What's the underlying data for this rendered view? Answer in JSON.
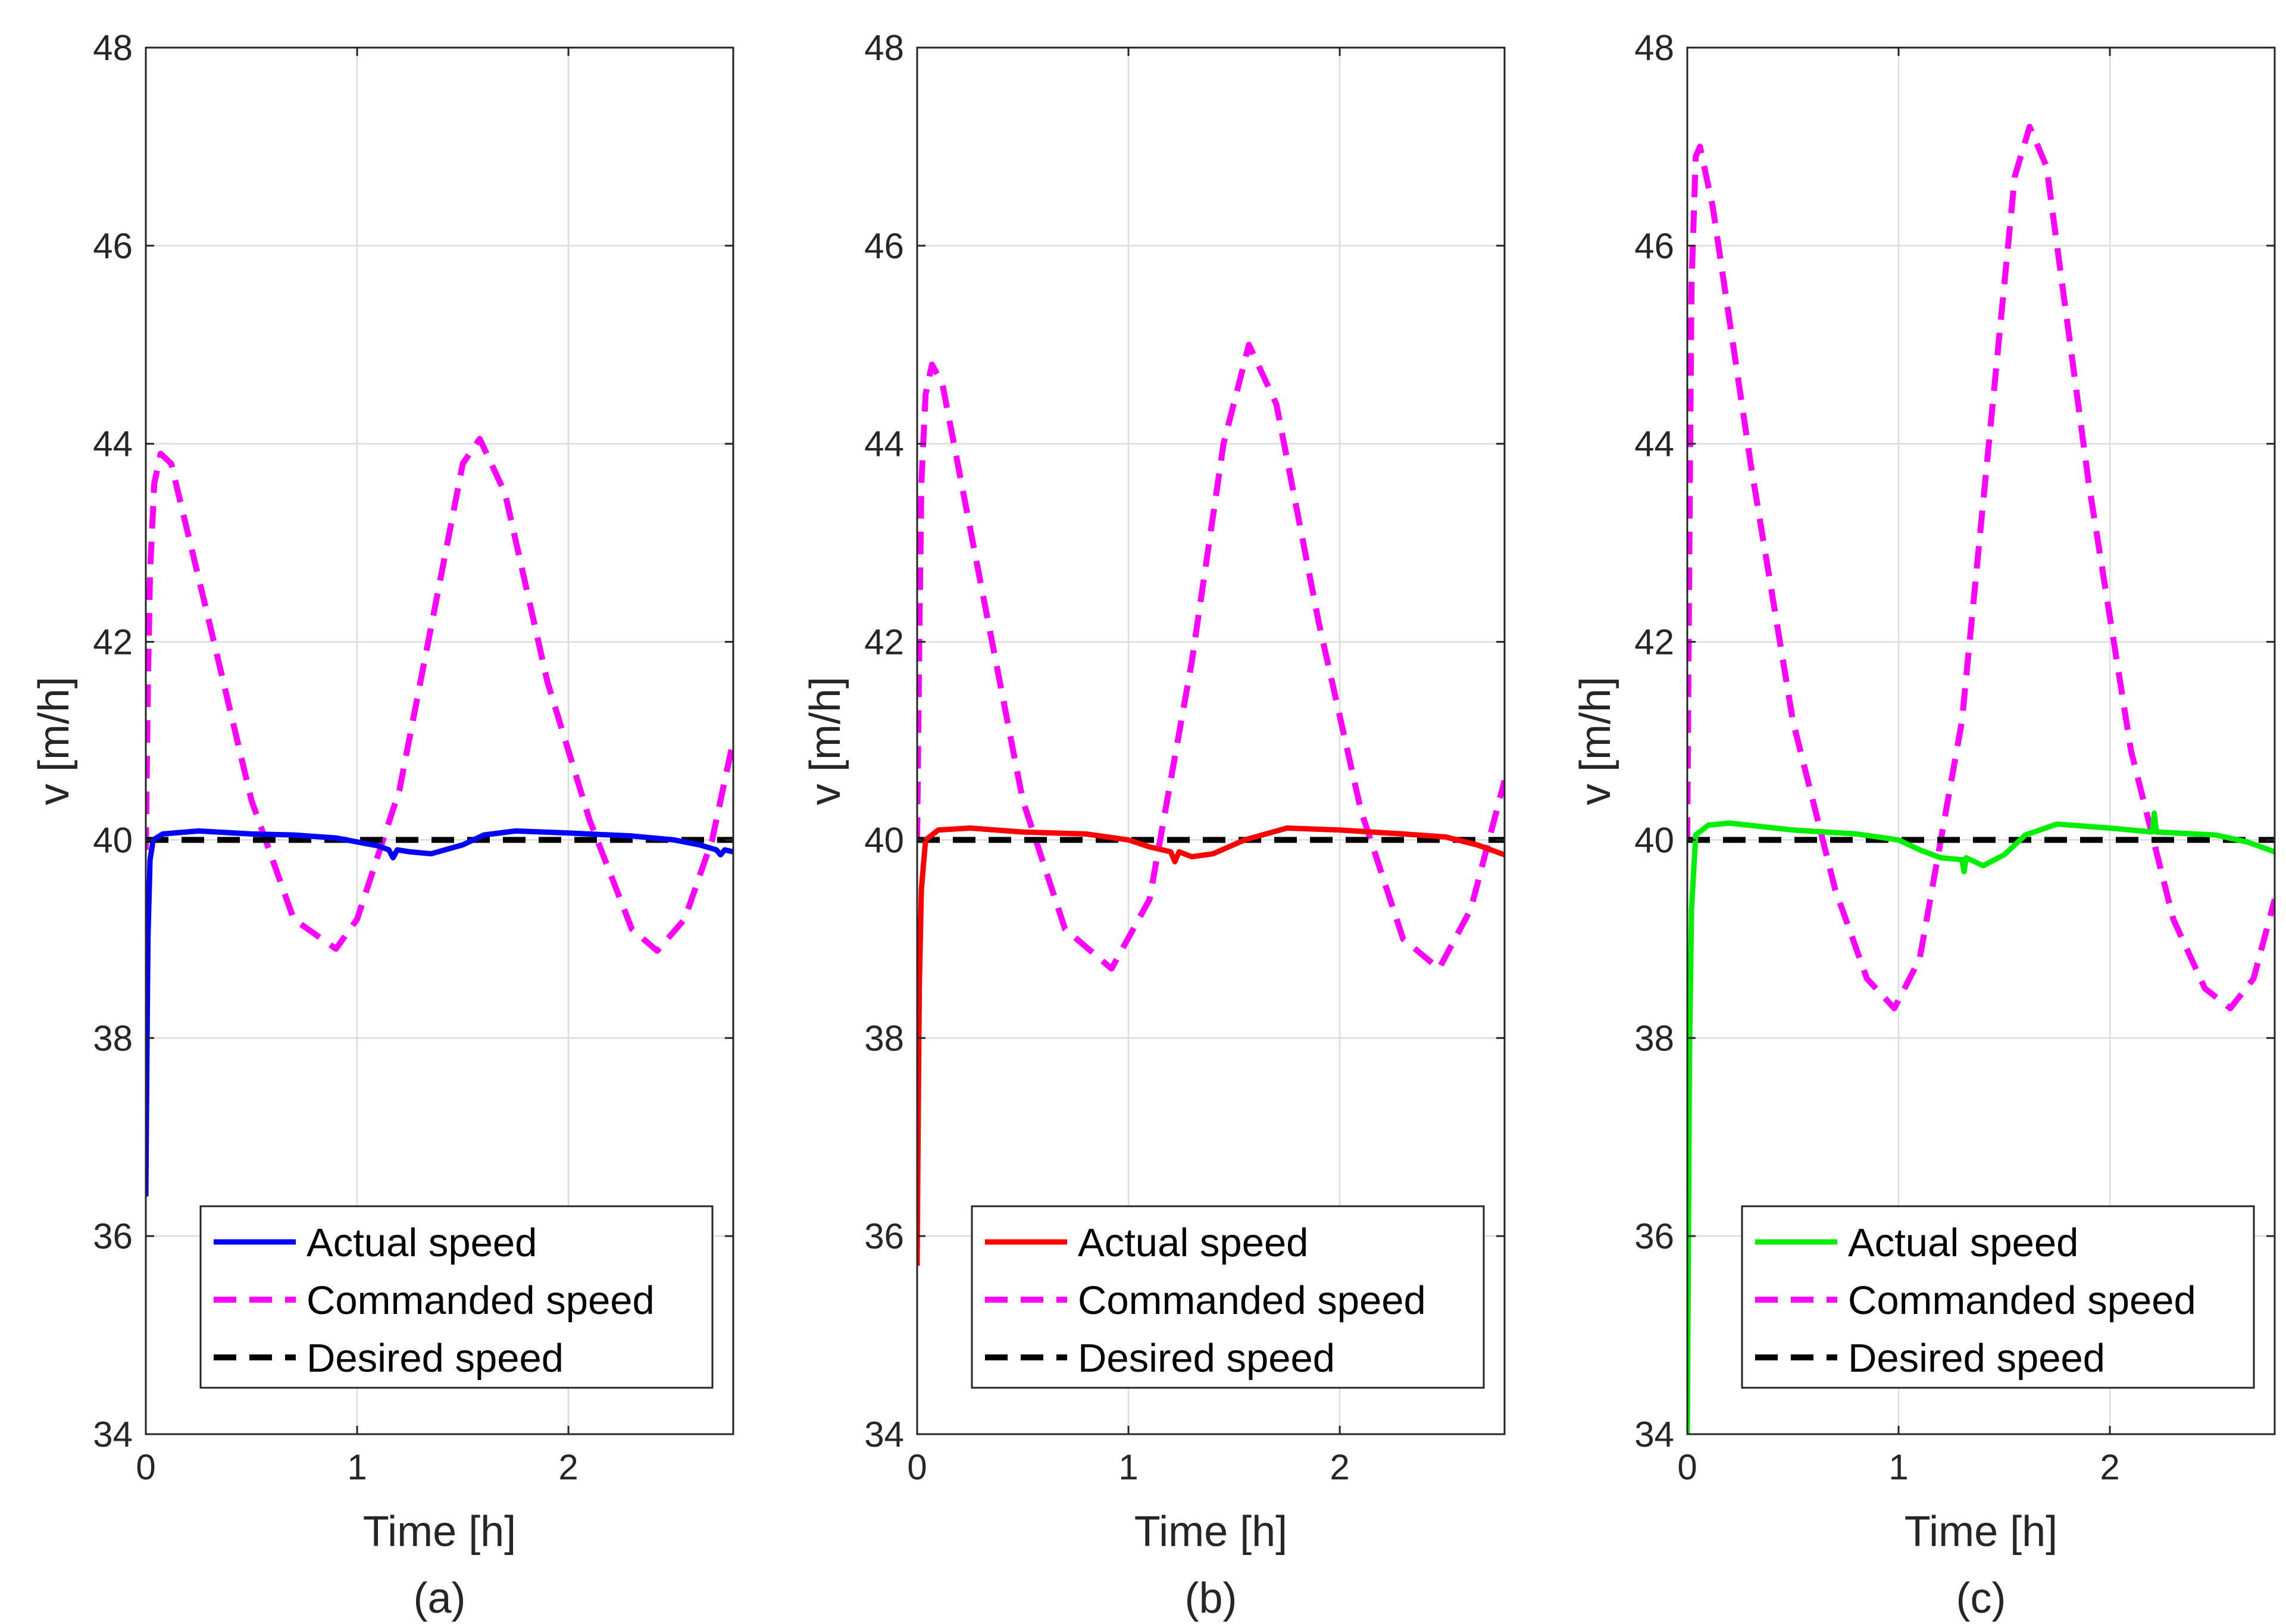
{
  "figure": {
    "colors": {
      "background": "#ffffff",
      "grid": "#dcdcdc",
      "axis": "#262626",
      "commanded": "#ff00ff",
      "desired": "#000000"
    }
  },
  "chart_data": [
    {
      "type": "line",
      "panel_label": "(a)",
      "xlabel": "Time [h]",
      "ylabel": "v [m/h]",
      "xlim": [
        0,
        2.78
      ],
      "ylim": [
        34,
        48
      ],
      "xticks": [
        "0",
        "1",
        "2"
      ],
      "yticks": [
        "34",
        "36",
        "38",
        "40",
        "42",
        "44",
        "46",
        "48"
      ],
      "grid": true,
      "legend_position": "bottom-right",
      "series": [
        {
          "name": "Actual speed",
          "color": "#0000ff",
          "style": "solid",
          "points": [
            [
              0,
              36.4
            ],
            [
              0.005,
              37.8
            ],
            [
              0.01,
              39.0
            ],
            [
              0.02,
              39.8
            ],
            [
              0.035,
              40.0
            ],
            [
              0.08,
              40.06
            ],
            [
              0.25,
              40.09
            ],
            [
              0.5,
              40.06
            ],
            [
              0.7,
              40.05
            ],
            [
              0.9,
              40.02
            ],
            [
              1.0,
              39.98
            ],
            [
              1.1,
              39.94
            ],
            [
              1.15,
              39.9
            ],
            [
              1.17,
              39.82
            ],
            [
              1.19,
              39.9
            ],
            [
              1.25,
              39.88
            ],
            [
              1.35,
              39.86
            ],
            [
              1.5,
              39.95
            ],
            [
              1.6,
              40.05
            ],
            [
              1.75,
              40.09
            ],
            [
              2.0,
              40.07
            ],
            [
              2.3,
              40.04
            ],
            [
              2.5,
              40.0
            ],
            [
              2.62,
              39.95
            ],
            [
              2.7,
              39.9
            ],
            [
              2.72,
              39.85
            ],
            [
              2.74,
              39.9
            ],
            [
              2.78,
              39.88
            ]
          ]
        },
        {
          "name": "Commanded speed",
          "color": "#ff00ff",
          "style": "dashed",
          "points": [
            [
              0,
              39.9
            ],
            [
              0.01,
              41.6
            ],
            [
              0.02,
              42.7
            ],
            [
              0.04,
              43.6
            ],
            [
              0.07,
              43.9
            ],
            [
              0.12,
              43.8
            ],
            [
              0.3,
              42.2
            ],
            [
              0.5,
              40.4
            ],
            [
              0.7,
              39.2
            ],
            [
              0.9,
              38.9
            ],
            [
              1.0,
              39.2
            ],
            [
              1.2,
              40.5
            ],
            [
              1.4,
              42.7
            ],
            [
              1.5,
              43.8
            ],
            [
              1.58,
              44.05
            ],
            [
              1.7,
              43.5
            ],
            [
              1.9,
              41.6
            ],
            [
              2.1,
              40.2
            ],
            [
              2.3,
              39.1
            ],
            [
              2.42,
              38.88
            ],
            [
              2.55,
              39.2
            ],
            [
              2.68,
              40.0
            ],
            [
              2.78,
              41.0
            ]
          ]
        },
        {
          "name": "Desired speed",
          "color": "#000000",
          "style": "dashed",
          "points": [
            [
              0,
              40
            ],
            [
              2.78,
              40
            ]
          ]
        }
      ]
    },
    {
      "type": "line",
      "panel_label": "(b)",
      "xlabel": "Time [h]",
      "ylabel": "v [m/h]",
      "xlim": [
        0,
        2.78
      ],
      "ylim": [
        34,
        48
      ],
      "xticks": [
        "0",
        "1",
        "2"
      ],
      "yticks": [
        "34",
        "36",
        "38",
        "40",
        "42",
        "44",
        "46",
        "48"
      ],
      "grid": true,
      "legend_position": "bottom-right",
      "series": [
        {
          "name": "Actual speed",
          "color": "#ff0000",
          "style": "solid",
          "points": [
            [
              0,
              35.7
            ],
            [
              0.005,
              37.2
            ],
            [
              0.01,
              38.5
            ],
            [
              0.02,
              39.5
            ],
            [
              0.04,
              40.0
            ],
            [
              0.1,
              40.1
            ],
            [
              0.25,
              40.12
            ],
            [
              0.5,
              40.08
            ],
            [
              0.8,
              40.06
            ],
            [
              1.0,
              40.0
            ],
            [
              1.1,
              39.93
            ],
            [
              1.2,
              39.88
            ],
            [
              1.22,
              39.78
            ],
            [
              1.24,
              39.88
            ],
            [
              1.3,
              39.83
            ],
            [
              1.4,
              39.86
            ],
            [
              1.55,
              40.0
            ],
            [
              1.75,
              40.12
            ],
            [
              2.0,
              40.1
            ],
            [
              2.3,
              40.06
            ],
            [
              2.5,
              40.03
            ],
            [
              2.65,
              39.95
            ],
            [
              2.78,
              39.85
            ]
          ]
        },
        {
          "name": "Commanded speed",
          "color": "#ff00ff",
          "style": "dashed",
          "points": [
            [
              0,
              40.0
            ],
            [
              0.01,
              42.0
            ],
            [
              0.02,
              43.6
            ],
            [
              0.04,
              44.5
            ],
            [
              0.07,
              44.8
            ],
            [
              0.12,
              44.6
            ],
            [
              0.3,
              42.6
            ],
            [
              0.5,
              40.4
            ],
            [
              0.7,
              39.1
            ],
            [
              0.92,
              38.7
            ],
            [
              1.1,
              39.4
            ],
            [
              1.3,
              41.8
            ],
            [
              1.45,
              44.0
            ],
            [
              1.57,
              45.0
            ],
            [
              1.7,
              44.4
            ],
            [
              1.9,
              42.2
            ],
            [
              2.1,
              40.3
            ],
            [
              2.3,
              39.0
            ],
            [
              2.47,
              38.7
            ],
            [
              2.62,
              39.3
            ],
            [
              2.78,
              40.6
            ]
          ]
        },
        {
          "name": "Desired speed",
          "color": "#000000",
          "style": "dashed",
          "points": [
            [
              0,
              40
            ],
            [
              2.78,
              40
            ]
          ]
        }
      ]
    },
    {
      "type": "line",
      "panel_label": "(c)",
      "xlabel": "Time [h]",
      "ylabel": "v [m/h]",
      "xlim": [
        0,
        2.78
      ],
      "ylim": [
        34,
        48
      ],
      "xticks": [
        "0",
        "1",
        "2"
      ],
      "yticks": [
        "34",
        "36",
        "38",
        "40",
        "42",
        "44",
        "46",
        "48"
      ],
      "grid": true,
      "legend_position": "bottom-right",
      "series": [
        {
          "name": "Actual speed",
          "color": "#00ee00",
          "style": "solid",
          "points": [
            [
              0,
              34.0
            ],
            [
              0.005,
              35.8
            ],
            [
              0.01,
              37.8
            ],
            [
              0.02,
              39.3
            ],
            [
              0.04,
              40.05
            ],
            [
              0.1,
              40.15
            ],
            [
              0.2,
              40.17
            ],
            [
              0.5,
              40.1
            ],
            [
              0.8,
              40.06
            ],
            [
              1.0,
              40.0
            ],
            [
              1.1,
              39.9
            ],
            [
              1.2,
              39.82
            ],
            [
              1.3,
              39.8
            ],
            [
              1.31,
              39.68
            ],
            [
              1.32,
              39.82
            ],
            [
              1.4,
              39.74
            ],
            [
              1.5,
              39.85
            ],
            [
              1.6,
              40.05
            ],
            [
              1.75,
              40.16
            ],
            [
              2.0,
              40.12
            ],
            [
              2.2,
              40.08
            ],
            [
              2.21,
              40.27
            ],
            [
              2.22,
              40.08
            ],
            [
              2.5,
              40.05
            ],
            [
              2.65,
              39.98
            ],
            [
              2.78,
              39.88
            ]
          ]
        },
        {
          "name": "Commanded speed",
          "color": "#ff00ff",
          "style": "dashed",
          "points": [
            [
              0,
              40.0
            ],
            [
              0.01,
              43.0
            ],
            [
              0.02,
              45.6
            ],
            [
              0.04,
              46.9
            ],
            [
              0.06,
              47.0
            ],
            [
              0.12,
              46.4
            ],
            [
              0.3,
              43.8
            ],
            [
              0.5,
              41.2
            ],
            [
              0.7,
              39.5
            ],
            [
              0.85,
              38.6
            ],
            [
              0.98,
              38.3
            ],
            [
              1.1,
              38.8
            ],
            [
              1.3,
              41.2
            ],
            [
              1.45,
              44.5
            ],
            [
              1.55,
              46.7
            ],
            [
              1.62,
              47.2
            ],
            [
              1.7,
              46.8
            ],
            [
              1.9,
              43.6
            ],
            [
              2.1,
              40.9
            ],
            [
              2.3,
              39.2
            ],
            [
              2.45,
              38.5
            ],
            [
              2.57,
              38.3
            ],
            [
              2.68,
              38.6
            ],
            [
              2.78,
              39.4
            ]
          ]
        },
        {
          "name": "Desired speed",
          "color": "#000000",
          "style": "dashed",
          "points": [
            [
              0,
              40
            ],
            [
              2.78,
              40
            ]
          ]
        }
      ]
    }
  ]
}
